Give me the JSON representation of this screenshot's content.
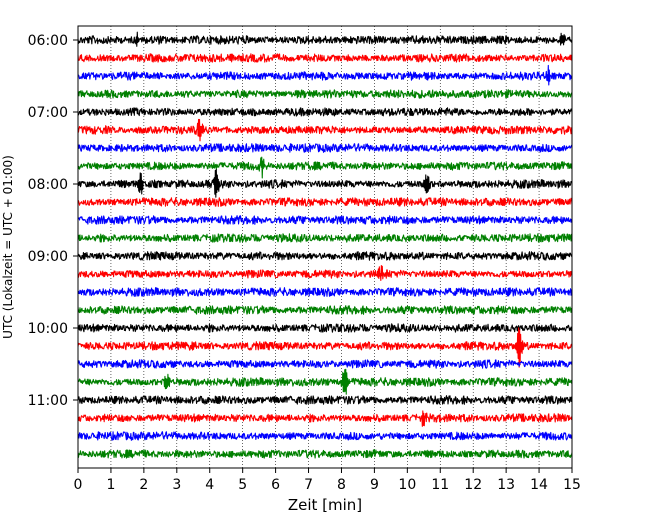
{
  "chart_data": {
    "type": "line",
    "chart_kind": "helicorder",
    "xlabel": "Zeit  [min]",
    "ylabel": "UTC (Lokalzeit = UTC + 01:00)",
    "xlim": [
      0,
      15
    ],
    "x_ticks": [
      "0",
      "1",
      "2",
      "3",
      "4",
      "5",
      "6",
      "7",
      "8",
      "9",
      "10",
      "11",
      "12",
      "13",
      "14",
      "15"
    ],
    "y_tick_labels": [
      "06:00",
      "07:00",
      "08:00",
      "09:00",
      "10:00",
      "11:00"
    ],
    "rows_per_hour": 4,
    "row_count": 24,
    "trace_colors": [
      "#000000",
      "#ff0000",
      "#0000ff",
      "#008000"
    ],
    "grid_x": true,
    "events": [
      {
        "row": 0,
        "minute": 1.8,
        "amplitude": 0.35
      },
      {
        "row": 0,
        "minute": 14.7,
        "amplitude": 0.4
      },
      {
        "row": 2,
        "minute": 14.3,
        "amplitude": 0.5
      },
      {
        "row": 5,
        "minute": 3.7,
        "amplitude": 0.55
      },
      {
        "row": 7,
        "minute": 5.6,
        "amplitude": 0.5
      },
      {
        "row": 8,
        "minute": 1.9,
        "amplitude": 0.65
      },
      {
        "row": 8,
        "minute": 4.2,
        "amplitude": 0.8
      },
      {
        "row": 8,
        "minute": 10.6,
        "amplitude": 0.55
      },
      {
        "row": 13,
        "minute": 9.2,
        "amplitude": 0.4
      },
      {
        "row": 17,
        "minute": 13.4,
        "amplitude": 1.3
      },
      {
        "row": 19,
        "minute": 8.1,
        "amplitude": 0.9
      },
      {
        "row": 19,
        "minute": 2.7,
        "amplitude": 0.45
      },
      {
        "row": 21,
        "minute": 10.5,
        "amplitude": 0.45
      }
    ]
  }
}
